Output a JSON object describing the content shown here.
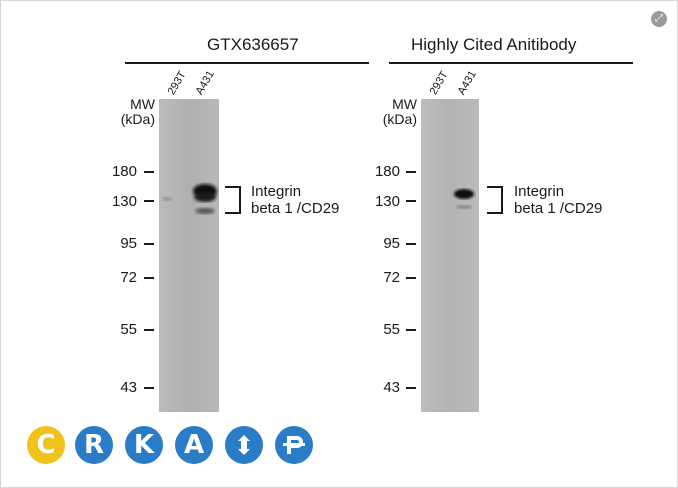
{
  "panels": [
    {
      "title": "GTX636657",
      "lanes": [
        "293T",
        "A431"
      ],
      "mw_label": [
        "MW",
        "(kDa)"
      ],
      "markers": [
        "180",
        "130",
        "95",
        "72",
        "55",
        "43"
      ],
      "annotation": [
        "Integrin",
        "beta 1 /CD29"
      ]
    },
    {
      "title": "Highly Cited Anitibody",
      "lanes": [
        "293T",
        "A431"
      ],
      "mw_label": [
        "MW",
        "(kDa)"
      ],
      "markers": [
        "180",
        "130",
        "95",
        "72",
        "55",
        "43"
      ],
      "annotation": [
        "Integrin",
        "beta 1 /CD29"
      ]
    }
  ],
  "logo": {
    "letters": [
      "C",
      "R",
      "K",
      "A",
      "",
      ""
    ],
    "colors": [
      "#f1c21b",
      "#2a7cc7",
      "#2a7cc7",
      "#2a7cc7",
      "#2a7cc7",
      "#2a7cc7"
    ]
  },
  "colors": {
    "blot_background": "#b4b4b4",
    "band": "#111111"
  }
}
